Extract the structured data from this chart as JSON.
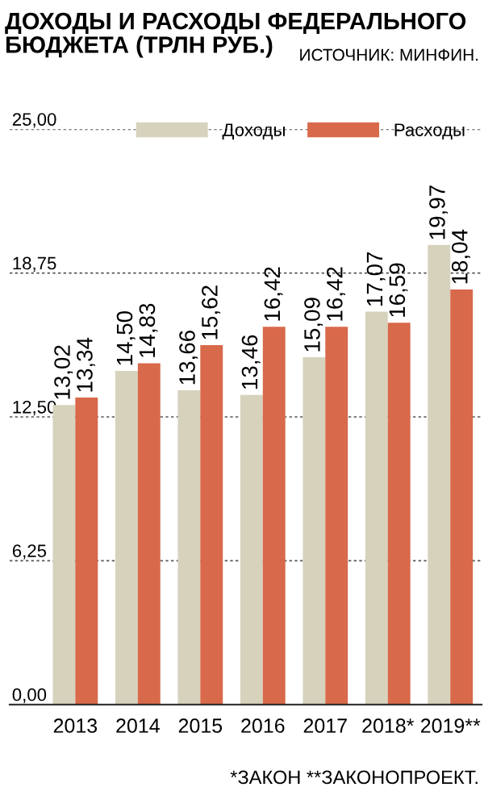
{
  "chart_data": {
    "type": "bar",
    "title": "ДОХОДЫ И РАСХОДЫ ФЕДЕРАЛЬНОГО\nБЮДЖЕТА (ТРЛН РУБ.)",
    "annotations": [
      "ИСТОЧНИК: МИНФИН.",
      "*ЗАКОН **ЗАКОНОПРОЕКТ."
    ],
    "categories": [
      "2013",
      "2014",
      "2015",
      "2016",
      "2017",
      "2018*",
      "2019**"
    ],
    "series": [
      {
        "name": "Доходы",
        "color": "#d6d2bc",
        "values": [
          13.02,
          14.5,
          13.66,
          13.46,
          15.09,
          17.07,
          19.97
        ],
        "value_labels": [
          "13,02",
          "14,50",
          "13,66",
          "13,46",
          "15,09",
          "17,07",
          "19,97"
        ]
      },
      {
        "name": "Расходы",
        "color": "#d8694a",
        "values": [
          13.34,
          14.83,
          15.62,
          16.42,
          16.42,
          16.59,
          18.04
        ],
        "value_labels": [
          "13,34",
          "14,83",
          "15,62",
          "16,42",
          "16,42",
          "16,59",
          "18,04"
        ]
      }
    ],
    "ylim": [
      0,
      25
    ],
    "yticks": [
      {
        "value": 0,
        "label": "0,00"
      },
      {
        "value": 6.25,
        "label": "6,25"
      },
      {
        "value": 12.5,
        "label": "12,50"
      },
      {
        "value": 18.75,
        "label": "18,75"
      },
      {
        "value": 25,
        "label": "25,00"
      }
    ],
    "grid": "y",
    "legend": "top right"
  }
}
